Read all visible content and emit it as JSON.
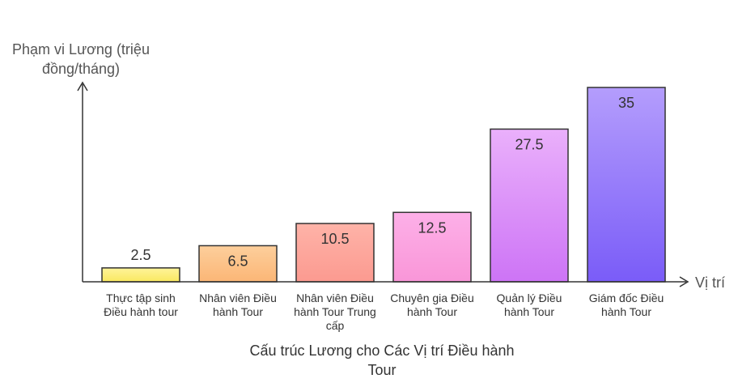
{
  "chart_data": {
    "type": "bar",
    "title_lines": [
      "Cấu trúc Lương cho Các Vị trí Điều hành",
      "Tour"
    ],
    "xlabel": "Vị trí",
    "ylabel_lines": [
      "Phạm vi Lương (triệu",
      "đồng/tháng)"
    ],
    "categories": [
      {
        "lines": [
          "Thực tập sinh",
          "Điều hành tour"
        ]
      },
      {
        "lines": [
          "Nhân viên Điều",
          "hành Tour"
        ]
      },
      {
        "lines": [
          "Nhân viên Điều",
          "hành Tour Trung",
          "cấp"
        ]
      },
      {
        "lines": [
          "Chuyên gia Điều",
          "hành Tour"
        ]
      },
      {
        "lines": [
          "Quản lý Điều",
          "hành Tour"
        ]
      },
      {
        "lines": [
          "Giám đốc Điều",
          "hành Tour"
        ]
      }
    ],
    "values": [
      2.5,
      6.5,
      10.5,
      12.5,
      27.5,
      35
    ],
    "value_labels": [
      "2.5",
      "6.5",
      "10.5",
      "12.5",
      "27.5",
      "35"
    ],
    "colors": [
      "#fdf07a",
      "#fdc48a",
      "#fda79b",
      "#fca3e0",
      "#d986f9",
      "#8b6cfb"
    ],
    "ylim": [
      0,
      35
    ],
    "grid": false,
    "legend": "none"
  }
}
